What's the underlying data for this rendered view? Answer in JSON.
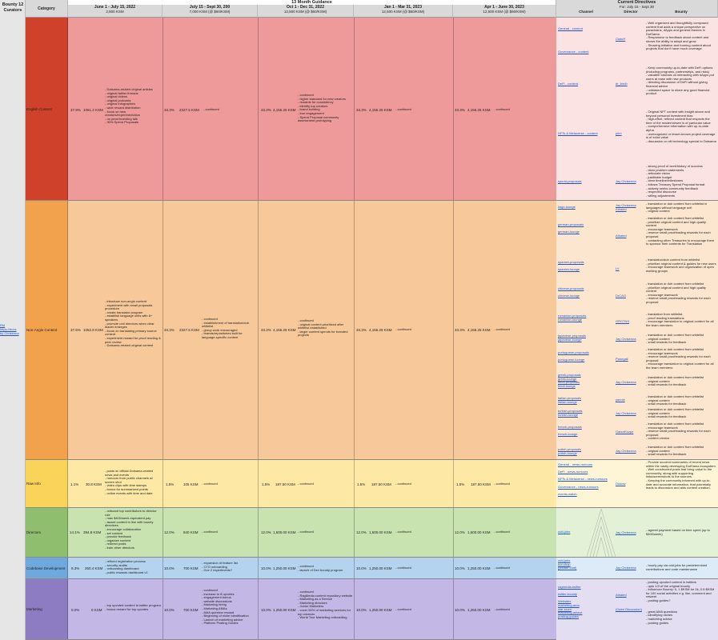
{
  "sheet_title": "13 Month Guidance",
  "left_column": {
    "title": "Bounty 12\nCurators",
    "link": "RM\nhttps://docs\nby Chrisenna"
  },
  "headers": {
    "category": "Category",
    "periods": [
      {
        "label": "June 1 - July 15, 2022",
        "sub": "2,800 KSM"
      },
      {
        "label": "July 15 - Sept 30, 200",
        "sub": "7,000 KSM (@ $60/KSM)"
      },
      {
        "label": "Oct 1 - Dec 31, 2022",
        "sub": "12,500 KSM (@ $60/KSM)"
      },
      {
        "label": "Jan 1 - Mar 31, 2023",
        "sub": "12,500 KSM (@ $60/KSM)"
      },
      {
        "label": "Apr 1 - June 30, 2023",
        "sub": "12,500 KSM (@ $60/KSM)"
      }
    ],
    "directives": {
      "label": "Current Directives",
      "sub": "For: July 15 - Sept 30",
      "channel": "Channel",
      "director": "Director",
      "bounty": "Bounty"
    }
  },
  "colors": {
    "english_dark": "#d0412b",
    "english_light": "#ee9a9a",
    "nonanglo_dark": "#f2a24c",
    "nonanglo_light": "#f7c99a",
    "raw_dark": "#f9d35a",
    "raw_light": "#fde9a5",
    "directors_dark": "#8fbe6f",
    "directors_light": "#c8e2b0",
    "codebase_dark": "#6fa8dc",
    "codebase_light": "#b4d3ee",
    "marketing_dark": "#8e7cc3",
    "marketing_light": "#c3b7e6"
  },
  "rows": [
    {
      "category": "English Content",
      "p1": {
        "pct": "37.9%",
        "ksm": "1061.2 KSM",
        "notes": "- Dotsama-related original articles\n- original twitter threads\n- original videos\n- original podcasts\n- original infographics\n- wide reward distribution\n- focus on new creators/experimentation\n- no price/investing talk\n- 30% Spend Proposals"
      },
      "p2": {
        "pct": "33.3%",
        "ksm": "2327.5 KSM",
        "notes": "- continued"
      },
      "p3": {
        "pct": "33.3%",
        "ksm": "4,156.25 KSM",
        "notes": "- continued\n- higher standard for new creators\n- rewards for consistency\n- identify top creators\n- brand building\n- true engagement\n- Spend Proposal community assessment prototyping"
      },
      "p4": {
        "pct": "33.3%",
        "ksm": "4,156.25 KSM",
        "notes": "- continued"
      },
      "p5": {
        "pct": "33.3%",
        "ksm": "4,156.25 KSM",
        "notes": "- continued"
      }
    },
    {
      "category": "Non-Anglo Content",
      "p1": {
        "pct": "37.6%",
        "ksm": "1052.8 KSM",
        "notes": "- introduce non-anglo content\n- experiment with small proposals procedure\n- create translator program\n- establish language units with 6+ speakers\n- promote unit directors when clear leader emerges\n- focus on translating primary source content\n- experiment reward for proof reading & peer review\n- Dotsama-related original content"
      },
      "p2": {
        "pct": "33.3%",
        "ksm": "2327.5 KSM",
        "notes": "- continued\n- establishment of translation/dub whitelist\n- group work encouraged\n- brands/repositories built for language-specific content"
      },
      "p3": {
        "pct": "33.3%",
        "ksm": "4,156.25 KSM",
        "notes": "- continued\n- original content prioritized after whitelist established\n- larger content spends for branded projects"
      },
      "p4": {
        "pct": "33.3%",
        "ksm": "4,156.25 KSM",
        "notes": "- continued"
      },
      "p5": {
        "pct": "33.3%",
        "ksm": "4,156.25 KSM",
        "notes": "- continued"
      }
    },
    {
      "category": "Raw Info",
      "p1": {
        "pct": "1.1%",
        "ksm": "30.8 KSM",
        "notes": "- posts w/ official Dotsama-related news and events\n- rumours from public channels w/ screen shot\n- video clips with time stamps\n- bonus for summarized points\n- online events with time and date"
      },
      "p2": {
        "pct": "1.5%",
        "ksm": "105 KSM",
        "notes": "- continued"
      },
      "p3": {
        "pct": "1.5%",
        "ksm": "187.50 KSM",
        "notes": "- continued"
      },
      "p4": {
        "pct": "1.5%",
        "ksm": "187.50 KSM",
        "notes": "- continued"
      },
      "p5": {
        "pct": "1.5%",
        "ksm": "187.50 KSM",
        "notes": "- continued"
      }
    },
    {
      "category": "Directors",
      "p1": {
        "pct": "14.1%",
        "ksm": "394.8 KSM",
        "notes": "- onboard top contributors to director role\n- max $400/week equivalent pay\n- award content in line with bounty directives\n- encourage collaboration\n- set content\n- provide feedback\n- organize content\n- redirect posts\n- train other directors"
      },
      "p2": {
        "pct": "12.0%",
        "ksm": "840 KSM",
        "notes": "- continued"
      },
      "p3": {
        "pct": "12.0%",
        "ksm": "1,500.00 KSM",
        "notes": "- continued"
      },
      "p4": {
        "pct": "12.0%",
        "ksm": "1,500.00 KSM",
        "notes": "- continued"
      },
      "p5": {
        "pct": "12.0%",
        "ksm": "1,500.00 KSM",
        "notes": "- continued"
      }
    },
    {
      "category": "Codebase Development",
      "p1": {
        "pct": "9.3%",
        "ksm": "260.4 KSM",
        "notes": "- refined registration process\n- security audits\n- onboarding dashboard\n- public rewards dashboard v1"
      },
      "p2": {
        "pct": "10.0%",
        "ksm": "700 KSM",
        "notes": "- expansion of feature list\n- CTO onboarding\n- Gov 2 experiments?"
      },
      "p3": {
        "pct": "10.0%",
        "ksm": "1,250.00 KSM",
        "notes": "- continued\n- launch of Dev bounty program"
      },
      "p4": {
        "pct": "10.0%",
        "ksm": "1,250.00 KSM",
        "notes": "- continued"
      },
      "p5": {
        "pct": "10.0%",
        "ksm": "1,250.00 KSM",
        "notes": "- continued"
      }
    },
    {
      "category": "Marketing",
      "p1": {
        "pct": "0.0%",
        "ksm": "0 KSM",
        "notes": "- top upvoted content to twitter program\n- bonus reward for top upvotes"
      },
      "p2": {
        "pct": "10.0%",
        "ksm": "700 KSM",
        "notes": "- continued\n- increase to 8 upvotes\n- engagement bonus\n- website discussions\n- Marketing hiring\n- Marketing AMAs\n- AMA question reward\n- Beginning of niche identification\n- Launch of marketing advice\n- Platform Posting Guides"
      },
      "p3": {
        "pct": "10.0%",
        "ksm": "1,250.00 KSM",
        "notes": "- continued\n- RagMedia content repository website\n- Marketing as a Service\n- Marketing directors\n- Junior Marketers\n- cover 50% of marketing services for top creators\n- World Tour Marketing onboarding"
      },
      "p4": {
        "pct": "10.0%",
        "ksm": "1,250.00 KSM",
        "notes": "- continued"
      },
      "p5": {
        "pct": "10.0%",
        "ksm": "1,250.00 KSM",
        "notes": "- continued"
      }
    }
  ],
  "directives": {
    "english": [
      {
        "channel": "General - content",
        "director": "CtainH",
        "bounty": "- Well organized and thoughtfully composed content that adds a unique perspective on parachains, dApps and general themes in DotSama.\n- Responsive to feedback about content and shows the ability to adapt and grow.\n- Showing initiative and forming content about projects that don't have much coverage"
      },
      {
        "channel": "Governance - content",
        "director": "",
        "bounty": ""
      },
      {
        "channel": "DeFi - content",
        "director": "dr_birdh",
        "bounty": "- Keep community up-to-date with DeFi options (including programs, partnerships, and risks)\n- valuable tutorials on interacting with dApps put users at ease with new products\n- directing discussion of DeFi without giving financial advice\n- unbiased space to share any good financial product"
      },
      {
        "channel": "NFTs & Metaverse - content",
        "director": "yrim",
        "bounty": "- Original NFT content with insight above and beyond personal investment bias\n- high-effort, refined content that respects the time of the reader/viewer is of particular value\n- comprehensive information with up-to-date alpha\n- unrecognized or lesser-known project coverage is of extra value\n- discussion on nft technology special to Dotsama"
      },
      {
        "channel": "spend-proposals",
        "director": "Jay Chrisenna",
        "bounty": "- strong proof of work/history of success\n- clear problem statements\n- articulate vision\n- justifiable budget\n- clear timeline/milestones\n- follows Treasury Spend Proposal format\n- actively seeks community feedback\n- respectful discourse\n- willing adjustments"
      }
    ],
    "nonanglo": [
      {
        "channel": "lingo-lounge",
        "director": "Jay Chrisenna\nAthaled",
        "bounty": "- translation or dub content from whitelist in languages without language unit\n- original content"
      },
      {
        "channel": "german-proposals\n\ngerman-lounge",
        "director": "Athaled",
        "bounty": "- translation or dub content from whitelist\n- prioritize original content and high quality content\n- encourage teamwork\n- reserve small proofreading rewards for each proposal\n- contacting other Treasuries to encourage them to sponsor their contents for Translation"
      },
      {
        "channel": "spanish-proposals\n\nspanish-lounge",
        "director": "LV",
        "bounty": "- translation/dub content from whitelist\n- prioritize original content & guides for new users\n- encourage teamwork and organization of open working groups"
      },
      {
        "channel": "chinese-proposals\n\nchinese-lounge",
        "director": "DrCAO",
        "bounty": "- translation or dub content from whitelist\n- prioritize original content and high quality content\n- encourage teamwork\n- reserve small proofreading rewards for each proposal"
      },
      {
        "channel": "romanian-proposals\nromanian-lounge",
        "director": "GRGTNS",
        "bounty": "- translation from whitelist\n- proof reading translations\n- encourage translation to original content for all the team members"
      },
      {
        "channel": "japanese-proposals\njapanese-lounge",
        "director": "Jay Chrisenna",
        "bounty": "- translation or dub content from whitelist\n- original content\n- small rewards for feedback"
      },
      {
        "channel": "portuguese-proposals\n\nportuguese-lounge",
        "director": "Panegali",
        "bounty": "- translation or dub content from whitelist\n- encourage teamwork\n- reserve small proofreading rewards for each proposal\n- encourage translation to original content for all the team members"
      },
      {
        "channel": "greek-proposals\ngreek-lounge\nhindi-proposals\nhindi-lounge",
        "director": "Jay Chrisenna",
        "bounty": "- translation or dub content from whitelist\n- original content\n- small rewards for feedback"
      },
      {
        "channel": "italian-proposals\nitalian-lounge",
        "director": "yannie",
        "bounty": "- translation or dub content from whitelist\n- original content\n- small rewards for feedback"
      },
      {
        "channel": "turkish-proposals\nturkish-lounge",
        "director": "Jay Chrisenna",
        "bounty": "- translation or dub content from whitelist\n- original content\n- small rewards for feedback"
      },
      {
        "channel": "french-proposals\n\nfrench-lounge",
        "director": "GaborKozpe",
        "bounty": "- translation or dub content from whitelist\n- encourage teamwork\n- reserve small proofreading rewards for each proposal\n- content creator"
      },
      {
        "channel": "polish-proposals\npolish-lounge",
        "director": "Jay Chrisenna",
        "bounty": "- translation or dub content from whitelist\n- original content\n- small rewards for feedback"
      }
    ],
    "raw": [
      {
        "channel": "General - news-rumours\n\nDeFi - news-rumours\n\nNFTs & Metaverse - news-rumours\n\nGovernance - news-rumours\n\nevents-watch",
        "director": "Dodow",
        "bounty": "- Provide succinct summaries of recent news within the vastly developing DotSama ecosystem.\n- Well constructed posts that bring value to the community, along with supporting links/screenshots to the sources.\n- Keeping the community informed with up-to-date and accurate information, that potentially leads to discussion and aids content creation."
      }
    ],
    "directors": [
      {
        "channel": "odd-jobs",
        "director": "Jay Chrisenna",
        "bounty": "- agreed payment based on time spent (up to $400/week)"
      }
    ],
    "codebase": [
      {
        "channel": "odd-jobs\nbot-shop\n(private chat)",
        "director": "Jay Chrisenna",
        "bounty": "- hourly pay via odd-jobs for predetermined contributions and code maintenance"
      }
    ],
    "marketing": [
      {
        "channel": "ragmedia-twitter\n\ntwitter-bounty\n\nWebsites\nmarketing-ama\nwar-room\nmarketing-advice\nposting-guides",
        "director": "Athaled\n\n\n\n(Open Discussion)",
        "bounty": "- posting upvoted content in twitters\n- upto 1/3 of the original bounty\n- Influencer Bounty: 0, 1 $KSM for 2k, 0.5 $KSM for 100 social activities e.g. like, comment and retweet\n- posting guides?\n\n\n- great AMA questions\n- identifying niches\n- marketing advice\n- posting guides"
      }
    ]
  }
}
